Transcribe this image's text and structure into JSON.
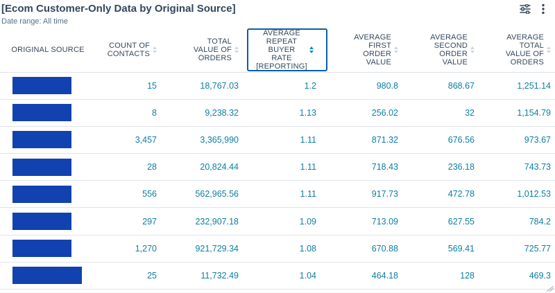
{
  "report": {
    "title": "[Ecom Customer-Only Data by Original Source]",
    "date_range": "Date range:  All time"
  },
  "toolbar": {
    "filter_icon": "sliders-icon",
    "more_icon": "vertical-ellipsis-icon"
  },
  "columns": [
    {
      "key": "source",
      "lines": [
        "ORIGINAL SOURCE"
      ],
      "sortable": false
    },
    {
      "key": "contacts",
      "lines": [
        "COUNT OF",
        "CONTACTS"
      ],
      "sortable": true
    },
    {
      "key": "total_value",
      "lines": [
        "TOTAL",
        "VALUE OF",
        "ORDERS"
      ],
      "sortable": true
    },
    {
      "key": "repeat_rate",
      "lines": [
        "AVERAGE",
        "REPEAT BUYER",
        "RATE",
        "[REPORTING]"
      ],
      "sortable": true,
      "active": true
    },
    {
      "key": "first_order",
      "lines": [
        "AVERAGE",
        "FIRST",
        "ORDER",
        "VALUE"
      ],
      "sortable": true
    },
    {
      "key": "second_order",
      "lines": [
        "AVERAGE",
        "SECOND",
        "ORDER",
        "VALUE"
      ],
      "sortable": true
    },
    {
      "key": "avg_total",
      "lines": [
        "AVERAGE",
        "TOTAL",
        "VALUE OF",
        "ORDERS"
      ],
      "sortable": true
    }
  ],
  "rows": [
    {
      "source_redacted_fraction": 0.85,
      "contacts": "15",
      "total_value": "18,767.03",
      "repeat_rate": "1.2",
      "first_order": "980.8",
      "second_order": "868.67",
      "avg_total": "1,251.14"
    },
    {
      "source_redacted_fraction": 0.85,
      "contacts": "8",
      "total_value": "9,238.32",
      "repeat_rate": "1.13",
      "first_order": "256.02",
      "second_order": "32",
      "avg_total": "1,154.79"
    },
    {
      "source_redacted_fraction": 0.85,
      "contacts": "3,457",
      "total_value": "3,365,990",
      "repeat_rate": "1.11",
      "first_order": "871.32",
      "second_order": "676.56",
      "avg_total": "973.67"
    },
    {
      "source_redacted_fraction": 0.85,
      "contacts": "28",
      "total_value": "20,824.44",
      "repeat_rate": "1.11",
      "first_order": "718.43",
      "second_order": "236.18",
      "avg_total": "743.73"
    },
    {
      "source_redacted_fraction": 0.85,
      "contacts": "556",
      "total_value": "562,965.56",
      "repeat_rate": "1.11",
      "first_order": "917.73",
      "second_order": "472.78",
      "avg_total": "1,012.53"
    },
    {
      "source_redacted_fraction": 0.85,
      "contacts": "297",
      "total_value": "232,907.18",
      "repeat_rate": "1.09",
      "first_order": "713.09",
      "second_order": "627.55",
      "avg_total": "784.2"
    },
    {
      "source_redacted_fraction": 0.85,
      "contacts": "1,270",
      "total_value": "921,729.34",
      "repeat_rate": "1.08",
      "first_order": "670.88",
      "second_order": "569.41",
      "avg_total": "725.77"
    },
    {
      "source_redacted_fraction": 1.0,
      "contacts": "25",
      "total_value": "11,732.49",
      "repeat_rate": "1.04",
      "first_order": "464.18",
      "second_order": "128",
      "avg_total": "469.3"
    }
  ],
  "colors": {
    "title": "#33475b",
    "value_text": "#0b7fa3",
    "redaction": "#1142b0",
    "active_header_border": "#0a5ea8",
    "sort_active": "#0091ae"
  }
}
